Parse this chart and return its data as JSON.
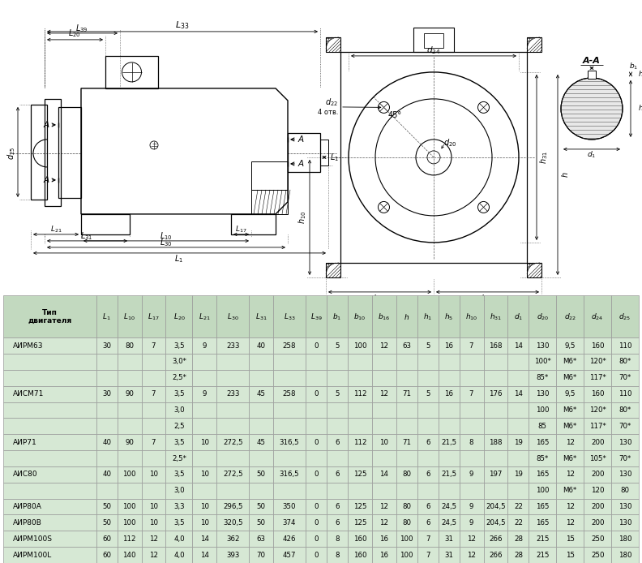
{
  "bg_color": "#d6e8d4",
  "header_bg": "#c2d9bf",
  "grid_color": "#999999",
  "rows": [
    [
      "АИРМ63",
      "30",
      "80",
      "7",
      "3,5",
      "9",
      "233",
      "40",
      "258",
      "0",
      "5",
      "100",
      "12",
      "63",
      "5",
      "16",
      "7",
      "168",
      "14",
      "130",
      "9,5",
      "160",
      "110"
    ],
    [
      "",
      "",
      "",
      "",
      "3,0*",
      "",
      "",
      "",
      "",
      "",
      "",
      "",
      "",
      "",
      "",
      "",
      "",
      "",
      "",
      "100*",
      "М6*",
      "120*",
      "80*"
    ],
    [
      "",
      "",
      "",
      "",
      "2,5*",
      "",
      "",
      "",
      "",
      "",
      "",
      "",
      "",
      "",
      "",
      "",
      "",
      "",
      "",
      "85*",
      "М6*",
      "117*",
      "70*"
    ],
    [
      "АИСМ71",
      "30",
      "90",
      "7",
      "3,5",
      "9",
      "233",
      "45",
      "258",
      "0",
      "5",
      "112",
      "12",
      "71",
      "5",
      "16",
      "7",
      "176",
      "14",
      "130",
      "9,5",
      "160",
      "110"
    ],
    [
      "",
      "",
      "",
      "",
      "3,0",
      "",
      "",
      "",
      "",
      "",
      "",
      "",
      "",
      "",
      "",
      "",
      "",
      "",
      "",
      "100",
      "М6*",
      "120*",
      "80*"
    ],
    [
      "",
      "",
      "",
      "",
      "2,5",
      "",
      "",
      "",
      "",
      "",
      "",
      "",
      "",
      "",
      "",
      "",
      "",
      "",
      "",
      "85",
      "М6*",
      "117*",
      "70*"
    ],
    [
      "АИР71",
      "40",
      "90",
      "7",
      "3,5",
      "10",
      "272,5",
      "45",
      "316,5",
      "0",
      "6",
      "112",
      "10",
      "71",
      "6",
      "21,5",
      "8",
      "188",
      "19",
      "165",
      "12",
      "200",
      "130"
    ],
    [
      "",
      "",
      "",
      "",
      "2,5*",
      "",
      "",
      "",
      "",
      "",
      "",
      "",
      "",
      "",
      "",
      "",
      "",
      "",
      "",
      "85*",
      "М6*",
      "105*",
      "70*"
    ],
    [
      "АИС80",
      "40",
      "100",
      "10",
      "3,5",
      "10",
      "272,5",
      "50",
      "316,5",
      "0",
      "6",
      "125",
      "14",
      "80",
      "6",
      "21,5",
      "9",
      "197",
      "19",
      "165",
      "12",
      "200",
      "130"
    ],
    [
      "",
      "",
      "",
      "",
      "3,0",
      "",
      "",
      "",
      "",
      "",
      "",
      "",
      "",
      "",
      "",
      "",
      "",
      "",
      "",
      "100",
      "М6*",
      "120",
      "80"
    ],
    [
      "АИР80А",
      "50",
      "100",
      "10",
      "3,3",
      "10",
      "296,5",
      "50",
      "350",
      "0",
      "6",
      "125",
      "12",
      "80",
      "6",
      "24,5",
      "9",
      "204,5",
      "22",
      "165",
      "12",
      "200",
      "130"
    ],
    [
      "АИР80В",
      "50",
      "100",
      "10",
      "3,5",
      "10",
      "320,5",
      "50",
      "374",
      "0",
      "6",
      "125",
      "12",
      "80",
      "6",
      "24,5",
      "9",
      "204,5",
      "22",
      "165",
      "12",
      "200",
      "130"
    ],
    [
      "АИРМ100S",
      "60",
      "112",
      "12",
      "4,0",
      "14",
      "362",
      "63",
      "426",
      "0",
      "8",
      "160",
      "16",
      "100",
      "7",
      "31",
      "12",
      "266",
      "28",
      "215",
      "15",
      "250",
      "180"
    ],
    [
      "АИРМ100L",
      "60",
      "140",
      "12",
      "4,0",
      "14",
      "393",
      "70",
      "457",
      "0",
      "8",
      "160",
      "16",
      "100",
      "7",
      "31",
      "12",
      "266",
      "28",
      "215",
      "15",
      "250",
      "180"
    ]
  ],
  "col_labels": [
    "Тип\nдвигателя",
    "L₁",
    "L₁₀",
    "L₁₇",
    "L₂₀",
    "L₂₁",
    "L₃₀",
    "L₃₁",
    "L₃₃",
    "L₃₉",
    "b₁",
    "b₁₀",
    "b₁₆",
    "h",
    "h₁",
    "h₅",
    "h₁₀",
    "h₃₁",
    "d₁",
    "d₂₀",
    "d₂₂",
    "d₂₄",
    "d₂₅"
  ]
}
